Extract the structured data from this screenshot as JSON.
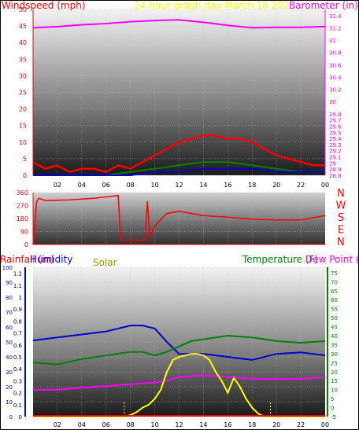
{
  "chart_data": [
    {
      "type": "line",
      "title": "24 hour graph day   March 18 202",
      "left_label": "Windspeed (mph)",
      "right_label": "Barometer (in)",
      "x_ticks": [
        "02",
        "04",
        "06",
        "08",
        "10",
        "12",
        "14",
        "16",
        "18",
        "20",
        "22",
        "00"
      ],
      "ylim_left": [
        0,
        50
      ],
      "y_left_ticks": [
        "0",
        "5",
        "10",
        "15",
        "20",
        "25",
        "30",
        "35",
        "40",
        "45",
        "50"
      ],
      "ylim_right": [
        28.8,
        31.5
      ],
      "y_right_ticks": [
        "28.8",
        "28.9",
        "29",
        "29.1",
        "29.2",
        "29.3",
        "29.4",
        "29.5",
        "29.6",
        "29.7",
        "29.8",
        "30",
        "30.2",
        "30.4",
        "30.6",
        "30.8",
        "31",
        "31.2",
        "31.4"
      ],
      "colors": {
        "gust": "#ff0000",
        "wind": "#008000",
        "avg": "#0000cc",
        "barometer": "#ff00ff",
        "axis_left": "#ff0000",
        "axis_right": "#ff00ff",
        "title": "#ffff00"
      },
      "series": [
        {
          "key": "barometer",
          "axis": "right",
          "x": [
            0,
            2,
            4,
            6,
            8,
            10,
            12,
            14,
            16,
            18,
            20,
            22,
            24
          ],
          "values": [
            31.2,
            31.22,
            31.25,
            31.27,
            31.3,
            31.32,
            31.33,
            31.29,
            31.24,
            31.2,
            31.21,
            31.21,
            31.22
          ]
        },
        {
          "key": "gust",
          "axis": "left",
          "x": [
            0,
            1,
            2,
            3,
            4,
            5,
            6,
            7,
            8,
            9,
            10,
            11,
            12,
            13,
            14,
            15,
            16,
            17,
            18,
            19,
            20,
            21,
            22,
            23,
            24
          ],
          "values": [
            4,
            2,
            3,
            1,
            2,
            2,
            1,
            3,
            2,
            4,
            6,
            8,
            10,
            11,
            12,
            12,
            11,
            11,
            10,
            8,
            6,
            5,
            4,
            3,
            3
          ]
        },
        {
          "key": "wind",
          "axis": "left",
          "x": [
            0,
            2,
            4,
            6,
            8,
            10,
            12,
            14,
            16,
            18,
            20,
            22,
            24
          ],
          "values": [
            0,
            0,
            0,
            0,
            1,
            2,
            3,
            4,
            4,
            3,
            2,
            1,
            1
          ]
        },
        {
          "key": "avg",
          "axis": "left",
          "x": [
            0,
            2,
            4,
            6,
            8,
            10,
            12,
            14,
            16,
            18,
            20,
            22,
            24
          ],
          "values": [
            0,
            0,
            0,
            0,
            0,
            1,
            1,
            2,
            2,
            2,
            1,
            1,
            1
          ]
        }
      ]
    },
    {
      "type": "line",
      "title": "",
      "x_ticks": [],
      "ylim_left": [
        0,
        360
      ],
      "y_left_ticks": [
        "0",
        "90",
        "180",
        "270",
        "360"
      ],
      "compass": [
        "N",
        "W",
        "S",
        "E",
        "N"
      ],
      "colors": {
        "direction": "#ff0000",
        "axis_left": "#ff0000",
        "compass": "#ff0000"
      },
      "series": [
        {
          "key": "direction",
          "axis": "left",
          "x": [
            0,
            0.3,
            0.5,
            1,
            3,
            5,
            7,
            7.2,
            7.3,
            9.2,
            9.4,
            9.6,
            10,
            11,
            12,
            14,
            16,
            18,
            20,
            22,
            24
          ],
          "values": [
            0,
            300,
            320,
            305,
            310,
            320,
            340,
            35,
            30,
            30,
            300,
            50,
            130,
            215,
            230,
            200,
            190,
            175,
            170,
            170,
            200
          ]
        }
      ]
    },
    {
      "type": "line",
      "title": "",
      "labels": {
        "rainfall": "Rainfall (in)",
        "humidity": "Humidity",
        "solar": "Solar",
        "temperature": "Temperature (F)",
        "dewpoint": "Dew Point ("
      },
      "x_ticks": [
        "02",
        "04",
        "06",
        "08",
        "10",
        "12",
        "14",
        "16",
        "18",
        "20",
        "22",
        "00"
      ],
      "ylim_rain": [
        0,
        1.25
      ],
      "y_rain_ticks": [
        "0",
        "0.1",
        "0.2",
        "0.3",
        "0.4",
        "0.5",
        "0.6",
        "0.7",
        "0.8",
        "0.9",
        "1",
        "1.1",
        "1.2"
      ],
      "ylim_hum": [
        0,
        100
      ],
      "y_hum_ticks": [
        "0",
        "10",
        "20",
        "30",
        "40",
        "50",
        "60",
        "70",
        "80",
        "90",
        "100"
      ],
      "ylim_temp": [
        -5,
        78
      ],
      "y_temp_ticks": [
        "-5",
        "0",
        "5",
        "10",
        "15",
        "20",
        "25",
        "30",
        "35",
        "40",
        "45",
        "50",
        "55",
        "60",
        "65",
        "70",
        "75"
      ],
      "sunrise_x": 7.5,
      "sunset_x": 19.5,
      "colors": {
        "rain": "#0000ff",
        "humidity": "#0000cc",
        "solar": "#ffff00",
        "temperature": "#008000",
        "dewpoint": "#ff00ff",
        "axis_rain": "#0000ff",
        "axis_temp": "#008000",
        "rain_label": "#ff0000",
        "hum_label": "#0000ff",
        "solar_label": "#999900",
        "temp_label": "#008000",
        "dew_label": "#ff00ff",
        "rain_bar": "#ff0000"
      },
      "series": [
        {
          "key": "humidity",
          "axis": "hum",
          "x": [
            0,
            2,
            4,
            6,
            8,
            9,
            10,
            11,
            12,
            14,
            16,
            18,
            20,
            22,
            24
          ],
          "values": [
            51,
            53,
            55,
            57,
            61,
            61,
            59,
            50,
            42,
            42,
            40,
            38,
            42,
            43,
            41
          ]
        },
        {
          "key": "temperature",
          "axis": "temp",
          "x": [
            0,
            2,
            4,
            6,
            8,
            9,
            10,
            11,
            12,
            13,
            14,
            16,
            18,
            20,
            22,
            24
          ],
          "values": [
            25,
            24,
            27,
            29,
            31,
            31,
            29,
            31,
            34,
            37,
            38,
            40,
            39,
            37,
            36,
            37
          ]
        },
        {
          "key": "dewpoint",
          "axis": "temp",
          "x": [
            0,
            2,
            4,
            6,
            8,
            10,
            11,
            12,
            14,
            16,
            18,
            20,
            22,
            24
          ],
          "values": [
            10,
            10,
            11,
            12,
            13,
            14,
            15,
            17,
            18,
            17,
            16,
            16,
            16,
            17
          ]
        },
        {
          "key": "solar",
          "axis": "hum",
          "x": [
            0,
            7.5,
            8,
            8.5,
            9,
            9.5,
            10,
            10.5,
            11,
            11.5,
            12,
            12.5,
            13,
            13.5,
            14,
            14.5,
            15,
            15.5,
            16,
            16.5,
            17,
            17.5,
            18,
            18.5,
            19,
            19.5,
            24
          ],
          "values": [
            0,
            0,
            1,
            3,
            6,
            8,
            12,
            18,
            30,
            38,
            40,
            41,
            42,
            42,
            41,
            38,
            30,
            24,
            16,
            26,
            20,
            12,
            6,
            2,
            0,
            0,
            0
          ]
        }
      ]
    }
  ]
}
